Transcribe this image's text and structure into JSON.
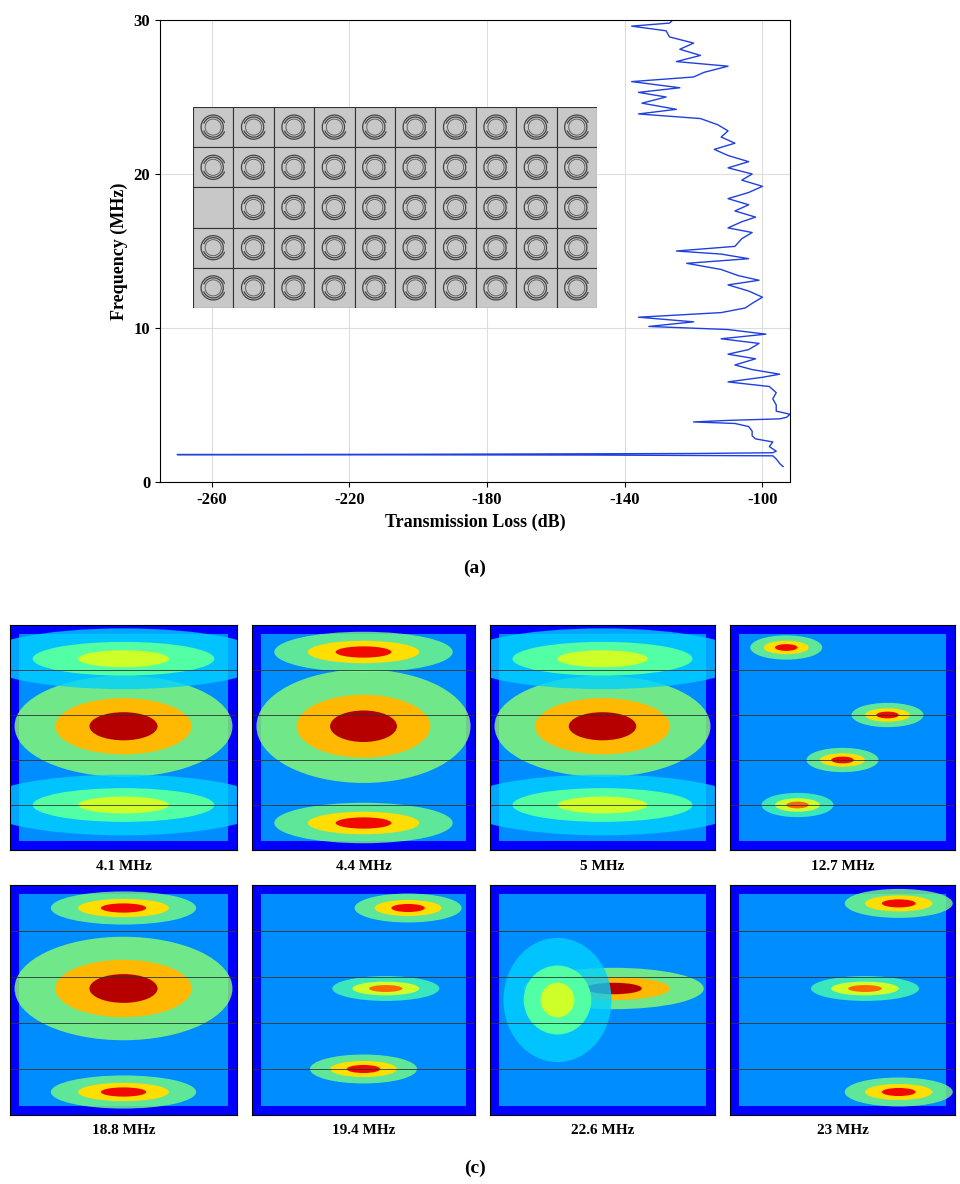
{
  "chart_data": {
    "type": "line",
    "panel_label": "(a)",
    "xlabel": "Transmission Loss (dB)",
    "ylabel": "Frequency (MHz)",
    "color": "#1f3fdf",
    "grid": true,
    "xlim": [
      -275,
      -92
    ],
    "ylim": [
      0,
      30
    ],
    "xticks": [
      -260,
      -220,
      -180,
      -140,
      -100
    ],
    "yticks": [
      0,
      10,
      20,
      30
    ],
    "x": [
      -94,
      -95,
      -96,
      -97,
      -150,
      -270,
      -200,
      -120,
      -97,
      -96,
      -98,
      -97,
      -102,
      -103,
      -103,
      -104,
      -108,
      -120,
      -110,
      -95,
      -93,
      -92,
      -96,
      -96,
      -97,
      -96,
      -98,
      -110,
      -100,
      -95,
      -103,
      -108,
      -102,
      -110,
      -104,
      -101,
      -112,
      -99,
      -110,
      -133,
      -120,
      -136,
      -112,
      -105,
      -103,
      -100,
      -104,
      -110,
      -101,
      -107,
      -112,
      -122,
      -104,
      -112,
      -125,
      -108,
      -106,
      -103,
      -110,
      -106,
      -102,
      -108,
      -104,
      -110,
      -104,
      -100,
      -106,
      -103,
      -110,
      -104,
      -110,
      -114,
      -108,
      -112,
      -110,
      -113,
      -118,
      -136,
      -125,
      -135,
      -128,
      -136,
      -124,
      -138,
      -120,
      -117,
      -110,
      -125,
      -118,
      -124,
      -120,
      -127,
      -128,
      -138,
      -127,
      -126
    ],
    "y": [
      1.0,
      1.2,
      1.5,
      1.7,
      1.75,
      1.78,
      1.8,
      1.85,
      1.9,
      2.0,
      2.3,
      2.6,
      2.8,
      3.0,
      3.3,
      3.6,
      3.8,
      3.9,
      4.0,
      4.1,
      4.2,
      4.4,
      4.6,
      5.0,
      5.4,
      5.8,
      6.2,
      6.5,
      6.8,
      7.0,
      7.3,
      7.6,
      8.0,
      8.3,
      8.6,
      9.0,
      9.3,
      9.6,
      9.9,
      10.1,
      10.4,
      10.7,
      11.0,
      11.3,
      11.6,
      12.0,
      12.4,
      12.8,
      13.1,
      13.4,
      13.8,
      14.2,
      14.5,
      14.8,
      15.0,
      15.3,
      15.8,
      16.2,
      16.5,
      16.9,
      17.2,
      17.6,
      18.0,
      18.4,
      18.8,
      19.2,
      19.6,
      20.0,
      20.4,
      20.8,
      21.2,
      21.6,
      22.0,
      22.4,
      22.8,
      23.2,
      23.6,
      23.9,
      24.2,
      24.6,
      25.0,
      25.3,
      25.6,
      26.0,
      26.3,
      26.6,
      27.0,
      27.3,
      27.7,
      28.1,
      28.5,
      28.9,
      29.3,
      29.6,
      29.8,
      30.0
    ],
    "inset": {
      "rows": 5,
      "columns": 10,
      "empty_cell": [
        2,
        0
      ]
    }
  },
  "field_maps": {
    "panel_label": "(c)",
    "labels": [
      "4.1 MHz",
      "4.4 MHz",
      "5 MHz",
      "12.7 MHz",
      "18.8 MHz",
      "19.4 MHz",
      "22.6 MHz",
      "23 MHz"
    ]
  }
}
